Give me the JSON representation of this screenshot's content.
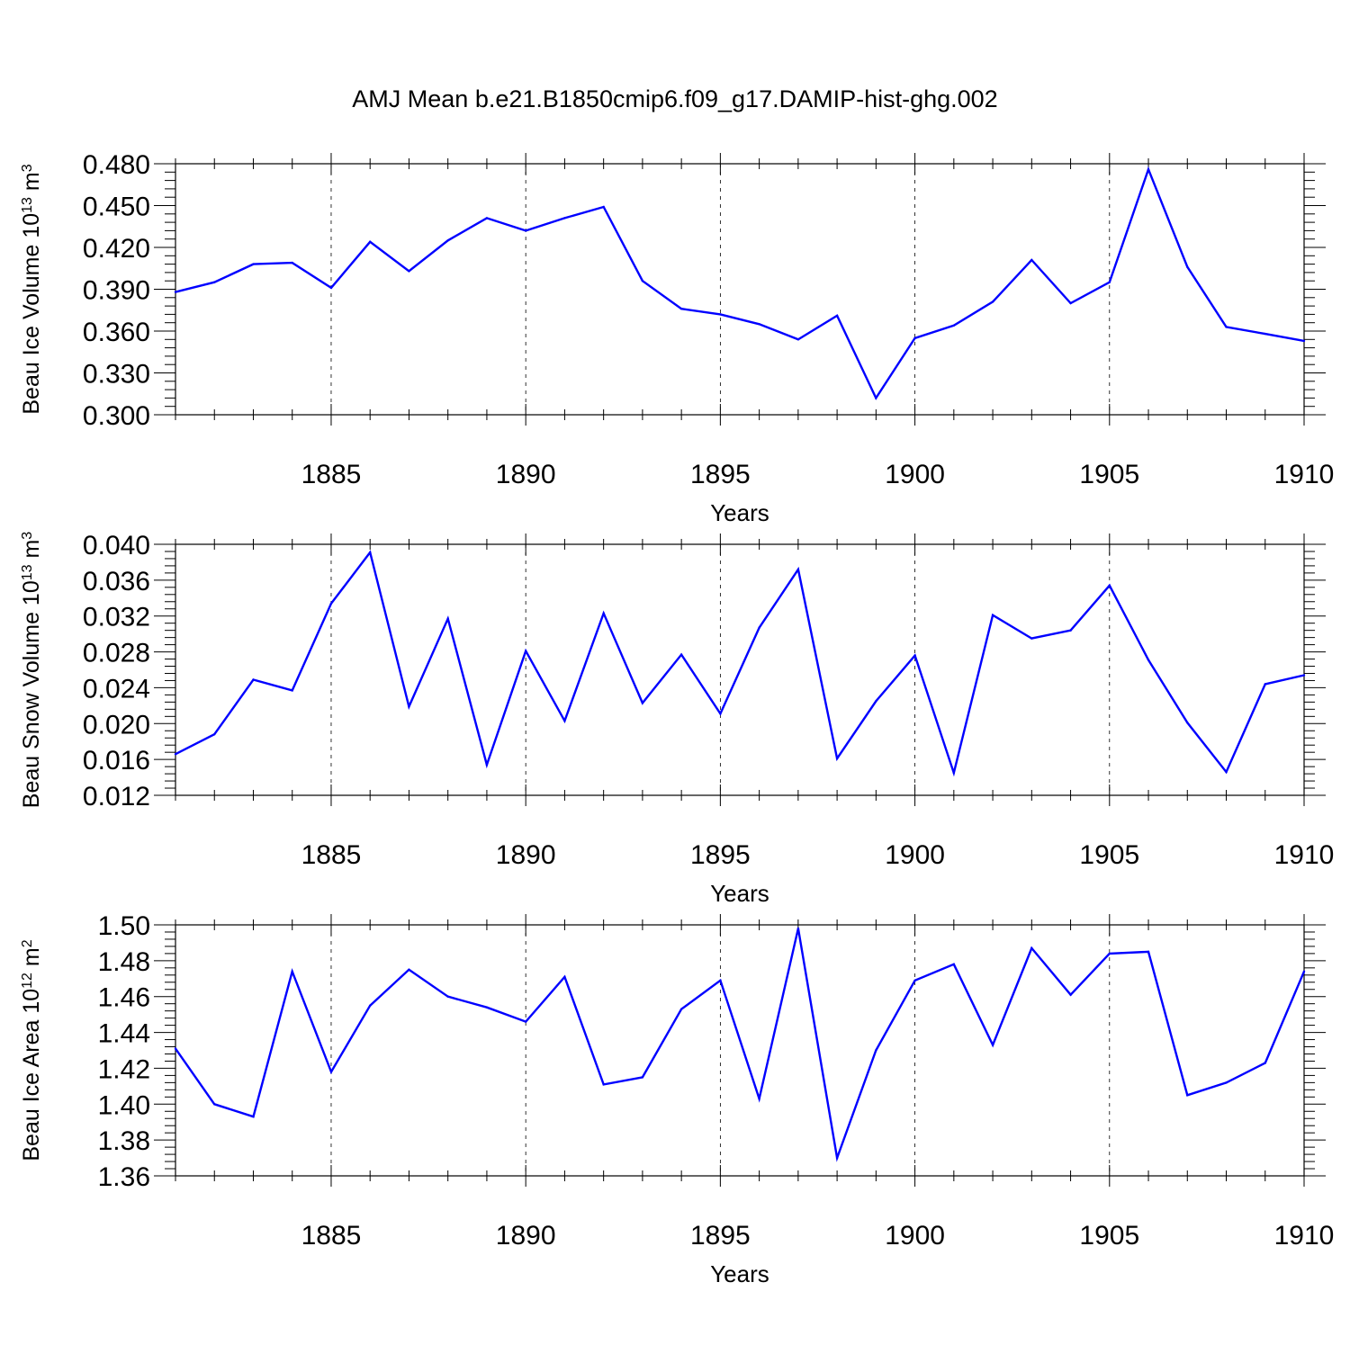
{
  "title": "AMJ Mean b.e21.B1850cmip6.f09_g17.DAMIP-hist-ghg.002",
  "colors": {
    "line": "#0000ff",
    "axis": "#000000"
  },
  "chart_data": [
    {
      "type": "line",
      "ylabel_main": "Beau Ice Volume 10",
      "ylabel_sup1": "13",
      "ylabel_unit": " m",
      "ylabel_sup2": "3",
      "xlabel": "Years",
      "xlim": [
        1881,
        1910
      ],
      "ylim": [
        0.3,
        0.48
      ],
      "yticks": [
        "0.300",
        "0.330",
        "0.360",
        "0.390",
        "0.420",
        "0.450",
        "0.480"
      ],
      "ytick_values": [
        0.3,
        0.33,
        0.36,
        0.39,
        0.42,
        0.45,
        0.48
      ],
      "xticks": [
        "1885",
        "1890",
        "1895",
        "1900",
        "1905",
        "1910"
      ],
      "xtick_values": [
        1885,
        1890,
        1895,
        1900,
        1905,
        1910
      ],
      "x": [
        1881,
        1882,
        1883,
        1884,
        1885,
        1886,
        1887,
        1888,
        1889,
        1890,
        1891,
        1892,
        1893,
        1894,
        1895,
        1896,
        1897,
        1898,
        1899,
        1900,
        1901,
        1902,
        1903,
        1904,
        1905,
        1906,
        1907,
        1908,
        1909,
        1910
      ],
      "values": [
        0.388,
        0.395,
        0.408,
        0.409,
        0.391,
        0.424,
        0.403,
        0.425,
        0.441,
        0.432,
        0.441,
        0.449,
        0.396,
        0.376,
        0.372,
        0.365,
        0.354,
        0.371,
        0.312,
        0.355,
        0.364,
        0.381,
        0.411,
        0.38,
        0.395,
        0.476,
        0.406,
        0.363,
        0.358,
        0.353
      ],
      "grid": "dashed vertical at x ticks"
    },
    {
      "type": "line",
      "ylabel_main": "Beau Snow Volume 10",
      "ylabel_sup1": "13",
      "ylabel_unit": " m",
      "ylabel_sup2": "3",
      "xlabel": "Years",
      "xlim": [
        1881,
        1910
      ],
      "ylim": [
        0.012,
        0.04
      ],
      "yticks": [
        "0.012",
        "0.016",
        "0.020",
        "0.024",
        "0.028",
        "0.032",
        "0.036",
        "0.040"
      ],
      "ytick_values": [
        0.012,
        0.016,
        0.02,
        0.024,
        0.028,
        0.032,
        0.036,
        0.04
      ],
      "xticks": [
        "1885",
        "1890",
        "1895",
        "1900",
        "1905",
        "1910"
      ],
      "xtick_values": [
        1885,
        1890,
        1895,
        1900,
        1905,
        1910
      ],
      "x": [
        1881,
        1882,
        1883,
        1884,
        1885,
        1886,
        1887,
        1888,
        1889,
        1890,
        1891,
        1892,
        1893,
        1894,
        1895,
        1896,
        1897,
        1898,
        1899,
        1900,
        1901,
        1902,
        1903,
        1904,
        1905,
        1906,
        1907,
        1908,
        1909,
        1910
      ],
      "values": [
        0.0166,
        0.0188,
        0.0249,
        0.0237,
        0.0334,
        0.0391,
        0.0219,
        0.0317,
        0.0154,
        0.0281,
        0.0203,
        0.0323,
        0.0223,
        0.0277,
        0.0211,
        0.0307,
        0.0372,
        0.0161,
        0.0225,
        0.0276,
        0.0145,
        0.0321,
        0.0295,
        0.0304,
        0.0354,
        0.0271,
        0.0201,
        0.0146,
        0.0244,
        0.0254
      ],
      "grid": "dashed vertical at x ticks"
    },
    {
      "type": "line",
      "ylabel_main": "Beau Ice Area 10",
      "ylabel_sup1": "12",
      "ylabel_unit": " m",
      "ylabel_sup2": "2",
      "xlabel": "Years",
      "xlim": [
        1881,
        1910
      ],
      "ylim": [
        1.36,
        1.5
      ],
      "yticks": [
        "1.36",
        "1.38",
        "1.40",
        "1.42",
        "1.44",
        "1.46",
        "1.48",
        "1.50"
      ],
      "ytick_values": [
        1.36,
        1.38,
        1.4,
        1.42,
        1.44,
        1.46,
        1.48,
        1.5
      ],
      "xticks": [
        "1885",
        "1890",
        "1895",
        "1900",
        "1905",
        "1910"
      ],
      "xtick_values": [
        1885,
        1890,
        1895,
        1900,
        1905,
        1910
      ],
      "x": [
        1881,
        1882,
        1883,
        1884,
        1885,
        1886,
        1887,
        1888,
        1889,
        1890,
        1891,
        1892,
        1893,
        1894,
        1895,
        1896,
        1897,
        1898,
        1899,
        1900,
        1901,
        1902,
        1903,
        1904,
        1905,
        1906,
        1907,
        1908,
        1909,
        1910
      ],
      "values": [
        1.431,
        1.4,
        1.393,
        1.474,
        1.418,
        1.455,
        1.475,
        1.46,
        1.454,
        1.446,
        1.471,
        1.411,
        1.415,
        1.453,
        1.469,
        1.403,
        1.498,
        1.37,
        1.43,
        1.469,
        1.478,
        1.433,
        1.487,
        1.461,
        1.484,
        1.485,
        1.405,
        1.412,
        1.423,
        1.474
      ],
      "grid": "dashed vertical at x ticks"
    }
  ]
}
